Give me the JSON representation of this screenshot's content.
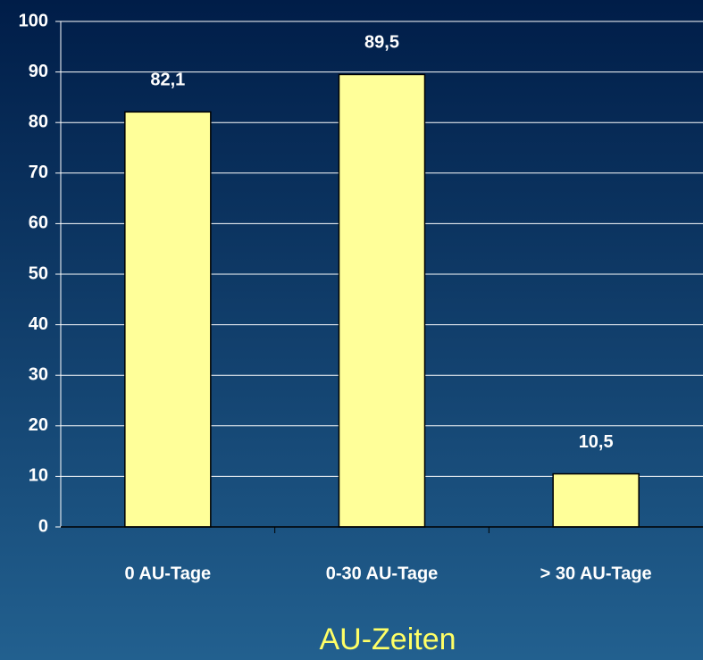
{
  "chart_data": {
    "type": "bar",
    "xlabel": "AU-Zeiten",
    "categories": [
      "0 AU-Tage",
      "0-30 AU-Tage",
      "> 30 AU-Tage"
    ],
    "values": [
      82.1,
      89.5,
      10.5
    ],
    "value_labels": [
      "82,1",
      "89,5",
      "10,5"
    ],
    "color": "#ffff99",
    "ylim": [
      0,
      100
    ],
    "yticks": [
      0,
      10,
      20,
      30,
      40,
      50,
      60,
      70,
      80,
      90,
      100
    ],
    "grid": true
  }
}
